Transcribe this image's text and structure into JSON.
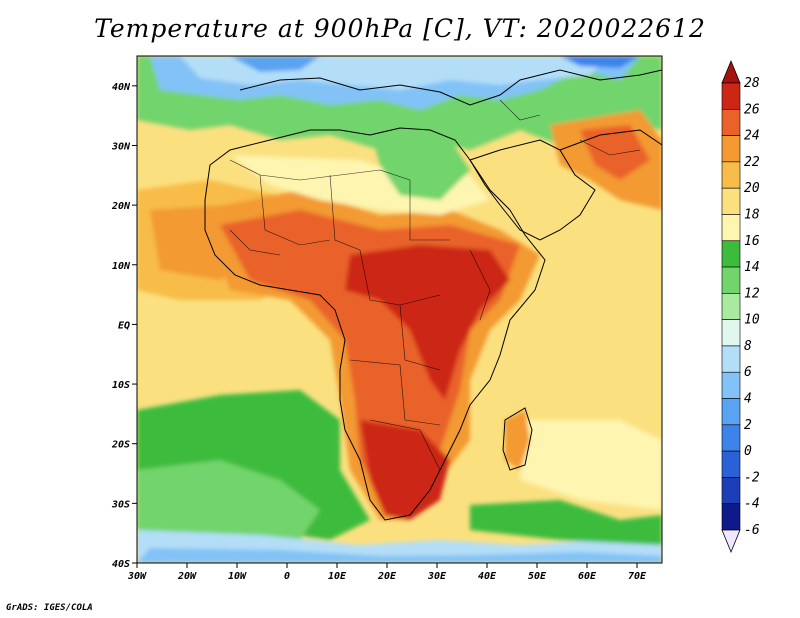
{
  "title": "Temperature at 900hPa [C], VT: 2020022612",
  "credit": "GrADS: IGES/COLA",
  "map": {
    "lon_range": [
      -30,
      75
    ],
    "lat_range": [
      -40,
      45
    ],
    "x_ticks": [
      {
        "lon": -30,
        "label": "30W"
      },
      {
        "lon": -20,
        "label": "20W"
      },
      {
        "lon": -10,
        "label": "10W"
      },
      {
        "lon": 0,
        "label": "0"
      },
      {
        "lon": 10,
        "label": "10E"
      },
      {
        "lon": 20,
        "label": "20E"
      },
      {
        "lon": 30,
        "label": "30E"
      },
      {
        "lon": 40,
        "label": "40E"
      },
      {
        "lon": 50,
        "label": "50E"
      },
      {
        "lon": 60,
        "label": "60E"
      },
      {
        "lon": 70,
        "label": "70E"
      }
    ],
    "y_ticks": [
      {
        "lat": 40,
        "label": "40N"
      },
      {
        "lat": 30,
        "label": "30N"
      },
      {
        "lat": 20,
        "label": "20N"
      },
      {
        "lat": 10,
        "label": "10N"
      },
      {
        "lat": 0,
        "label": "EQ"
      },
      {
        "lat": -10,
        "label": "10S"
      },
      {
        "lat": -20,
        "label": "20S"
      },
      {
        "lat": -30,
        "label": "30S"
      },
      {
        "lat": -40,
        "label": "40S"
      }
    ],
    "ocean_color": "#f4c44a"
  },
  "colorbar": {
    "levels": [
      -6,
      -4,
      -2,
      0,
      2,
      4,
      6,
      8,
      10,
      12,
      14,
      16,
      18,
      20,
      22,
      24,
      26,
      28
    ],
    "labels": [
      "-6",
      "-4",
      "-2",
      "0",
      "2",
      "4",
      "6",
      "8",
      "10",
      "12",
      "14",
      "16",
      "18",
      "20",
      "22",
      "24",
      "26",
      "28"
    ],
    "colors": [
      "#f0e6ff",
      "#0e1a8a",
      "#1c3fb8",
      "#2a61d6",
      "#3d83ea",
      "#5aa2f2",
      "#82c2f6",
      "#b4def8",
      "#e2f6f0",
      "#aaeaa0",
      "#72d46c",
      "#3cbb3c",
      "#fdf5b0",
      "#fbe080",
      "#f8bc4a",
      "#f39a33",
      "#e9622a",
      "#cc2616",
      "#a8120e"
    ]
  }
}
